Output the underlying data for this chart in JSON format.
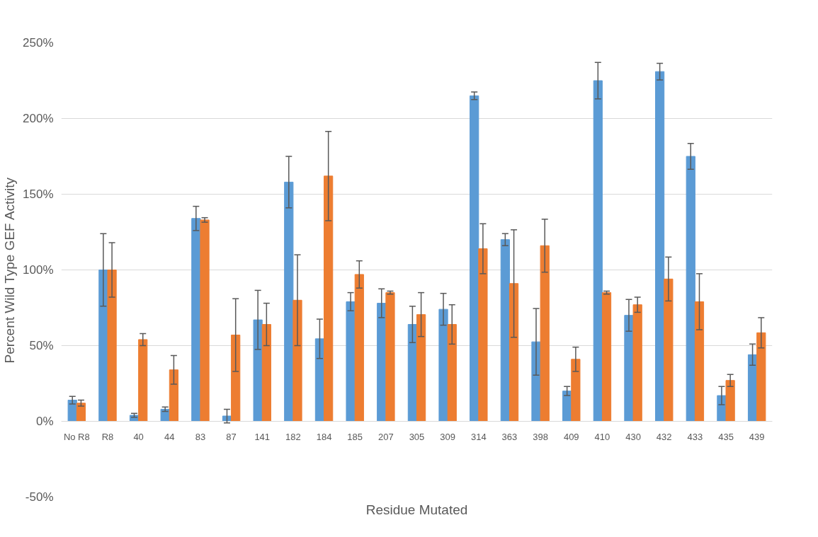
{
  "chart_data": {
    "type": "bar",
    "xlabel": "Residue Mutated",
    "ylabel": "Percent Wild Type GEF Activity",
    "categories": [
      "No R8",
      "R8",
      "40",
      "44",
      "83",
      "87",
      "141",
      "182",
      "184",
      "185",
      "207",
      "305",
      "309",
      "314",
      "363",
      "398",
      "409",
      "410",
      "430",
      "432",
      "433",
      "435",
      "439"
    ],
    "series": [
      {
        "color": "#5b9bd5",
        "values": [
          14,
          100,
          4,
          8,
          134,
          3.5,
          67,
          158,
          54.5,
          79,
          78,
          64,
          74,
          215,
          120,
          52.5,
          20,
          225,
          70,
          231,
          175,
          17,
          44
        ],
        "errors": [
          2.5,
          24,
          1.3,
          1.5,
          8,
          4.5,
          19.5,
          17,
          13,
          6,
          9.5,
          12,
          10.5,
          2.5,
          4,
          22,
          3,
          12,
          10.5,
          5.5,
          8.5,
          6,
          7
        ]
      },
      {
        "color": "#ed7d31",
        "values": [
          12,
          100,
          54,
          34,
          133,
          57,
          64,
          80,
          162,
          97,
          85,
          70.5,
          64,
          114,
          91,
          116,
          41,
          85,
          77,
          94,
          79,
          27,
          58.5
        ],
        "errors": [
          2,
          18,
          4,
          9.5,
          1.5,
          24,
          14,
          30,
          29.5,
          9,
          1,
          14.5,
          13,
          16.5,
          35.5,
          17.5,
          8,
          1,
          5,
          14.5,
          18.5,
          4,
          10
        ]
      }
    ],
    "ylim": [
      -50,
      250
    ],
    "yticks": [
      {
        "value": -50,
        "label": "-50%"
      },
      {
        "value": 0,
        "label": "0%"
      },
      {
        "value": 50,
        "label": "50%"
      },
      {
        "value": 100,
        "label": "100%"
      },
      {
        "value": 150,
        "label": "150%"
      },
      {
        "value": 200,
        "label": "200%"
      },
      {
        "value": 250,
        "label": "250%"
      }
    ],
    "grid": "y"
  }
}
